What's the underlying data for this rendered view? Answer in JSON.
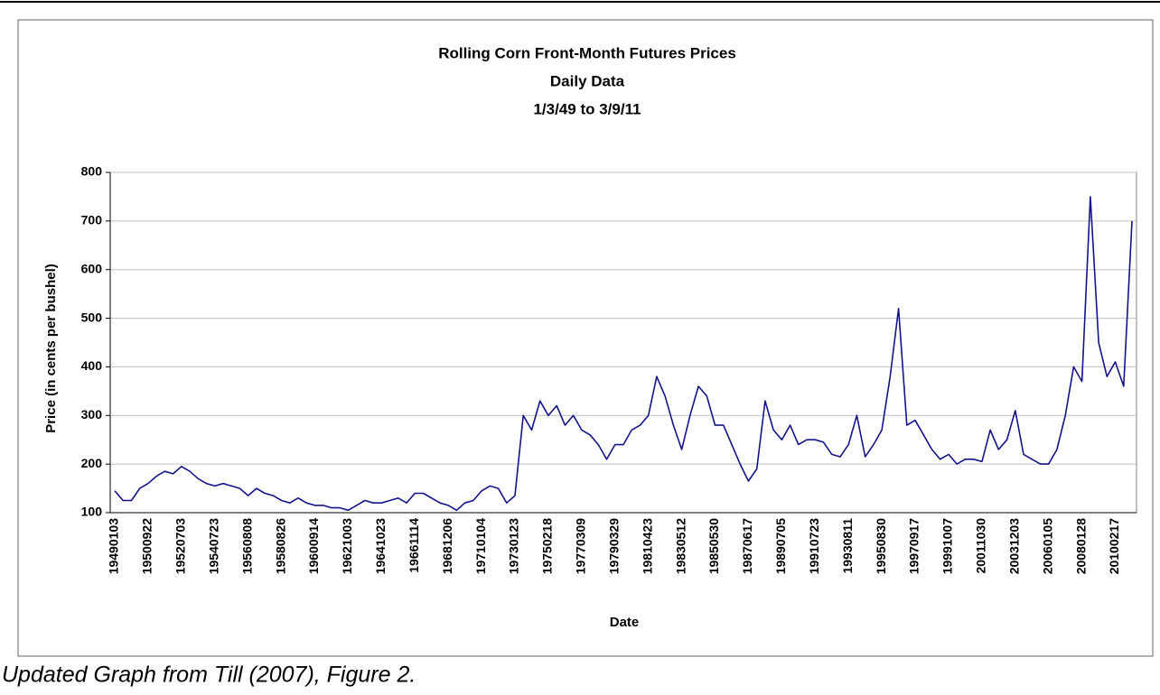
{
  "chart_data": {
    "type": "line",
    "title": "Rolling Corn Front-Month Futures Prices",
    "subtitle": [
      "Daily Data",
      "1/3/49 to 3/9/11"
    ],
    "ylabel": "Price (in cents per bushel)",
    "xlabel": "Date",
    "caption": "Updated Graph from Till (2007), Figure 2.",
    "categories": [
      "19490103",
      null,
      null,
      null,
      "19500922",
      null,
      null,
      null,
      "19520703",
      null,
      null,
      null,
      "19540723",
      null,
      null,
      null,
      "19560808",
      null,
      null,
      null,
      "19580826",
      null,
      null,
      null,
      "19600914",
      null,
      null,
      null,
      "19621003",
      null,
      null,
      null,
      "19641023",
      null,
      null,
      null,
      "19661114",
      null,
      null,
      null,
      "19681206",
      null,
      null,
      null,
      "19710104",
      null,
      null,
      null,
      "19730123",
      null,
      null,
      null,
      "19750218",
      null,
      null,
      null,
      "19770309",
      null,
      null,
      null,
      "19790329",
      null,
      null,
      null,
      "19810423",
      null,
      null,
      null,
      "19830512",
      null,
      null,
      null,
      "19850530",
      null,
      null,
      null,
      "19870617",
      null,
      null,
      null,
      "19890705",
      null,
      null,
      null,
      "19910723",
      null,
      null,
      null,
      "19930811",
      null,
      null,
      null,
      "19950830",
      null,
      null,
      null,
      "19970917",
      null,
      null,
      null,
      "19991007",
      null,
      null,
      null,
      "20011030",
      null,
      null,
      null,
      "20031203",
      null,
      null,
      null,
      "20060105",
      null,
      null,
      null,
      "20080128",
      null,
      null,
      null,
      "20100217",
      null,
      null
    ],
    "series": [
      {
        "name": "Price",
        "color": "#14148a",
        "values": [
          145,
          125,
          125,
          150,
          160,
          175,
          185,
          180,
          195,
          185,
          170,
          160,
          155,
          160,
          155,
          150,
          135,
          150,
          140,
          135,
          125,
          120,
          130,
          120,
          115,
          115,
          110,
          110,
          105,
          115,
          125,
          120,
          120,
          125,
          130,
          120,
          140,
          140,
          130,
          120,
          115,
          105,
          120,
          125,
          145,
          155,
          150,
          120,
          135,
          300,
          270,
          330,
          300,
          320,
          280,
          300,
          270,
          260,
          240,
          210,
          240,
          240,
          270,
          280,
          300,
          380,
          340,
          280,
          230,
          300,
          360,
          340,
          280,
          280,
          240,
          200,
          165,
          190,
          330,
          270,
          250,
          280,
          240,
          250,
          250,
          245,
          220,
          215,
          240,
          300,
          215,
          240,
          270,
          380,
          520,
          280,
          290,
          260,
          230,
          210,
          220,
          200,
          210,
          210,
          205,
          270,
          230,
          250,
          310,
          220,
          210,
          200,
          200,
          230,
          300,
          400,
          370,
          750,
          450,
          380,
          410,
          360,
          700
        ]
      }
    ],
    "ylim": [
      100,
      800
    ],
    "yticks": [
      100,
      200,
      300,
      400,
      500,
      600,
      700,
      800
    ],
    "grid": true
  }
}
